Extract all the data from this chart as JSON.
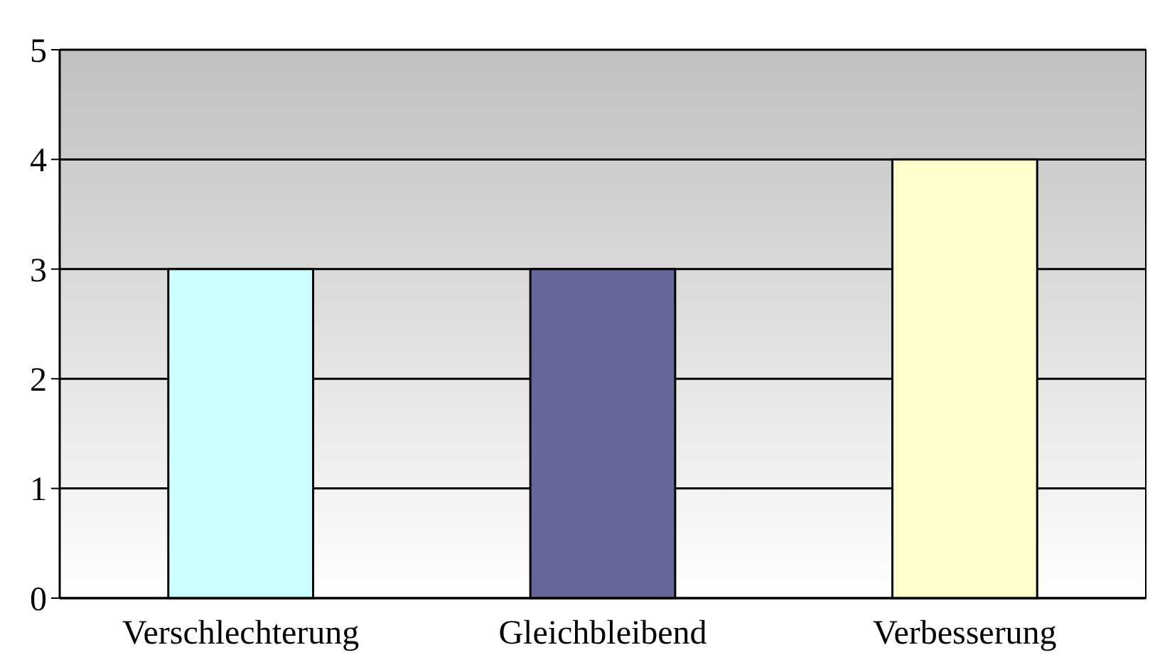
{
  "chart_data": {
    "type": "bar",
    "categories": [
      "Verschlechterung",
      "Gleichbleibend",
      "Verbesserung"
    ],
    "values": [
      3,
      3,
      4
    ],
    "colors": [
      "#ccffff",
      "#666699",
      "#ffffcc"
    ],
    "ylim": [
      0,
      5
    ],
    "yticks": [
      0,
      1,
      2,
      3,
      4,
      5
    ],
    "grid": "y"
  }
}
